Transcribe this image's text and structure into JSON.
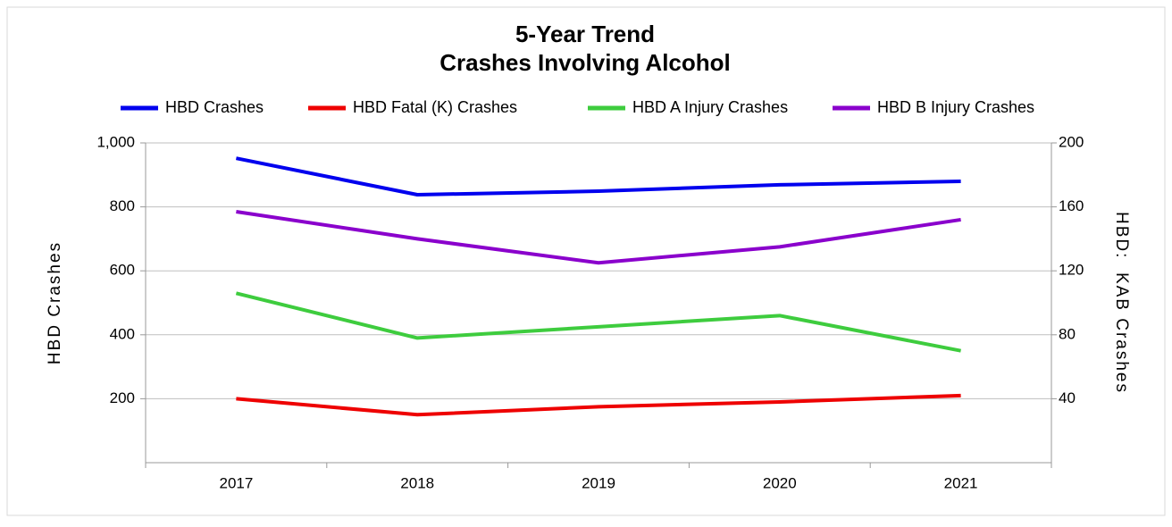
{
  "chart_data": {
    "type": "line",
    "title": "5-Year Trend",
    "subtitle": "Crashes Involving Alcohol",
    "y_label": "HBD Crashes",
    "y2_label": "HBD:  KAB Crashes",
    "categories": [
      "2017",
      "2018",
      "2019",
      "2020",
      "2021"
    ],
    "series": [
      {
        "name": "HBD Crashes",
        "color": "#0000ee",
        "values": [
          952,
          838,
          849,
          869,
          880
        ]
      },
      {
        "name": "HBD Fatal (K) Crashes",
        "color": "#ee0000",
        "axis": "y2",
        "values": [
          40,
          30,
          35,
          38,
          42
        ]
      },
      {
        "name": "HBD A Injury Crashes",
        "color": "#3ecc3e",
        "axis": "y2",
        "values": [
          106,
          78,
          85,
          92,
          70
        ]
      },
      {
        "name": "HBD B Injury Crashes",
        "color": "#8a00cc",
        "axis": "y2",
        "values": [
          157,
          140,
          125,
          135,
          152
        ]
      }
    ],
    "ylim": [
      0,
      1000
    ],
    "yticks": [
      200,
      400,
      600,
      {
        "value": 800,
        "label": "800"
      },
      {
        "value": 1000,
        "label": "1,000"
      }
    ],
    "y2lim": [
      0,
      200
    ],
    "y2ticks": [
      40,
      80,
      120,
      160,
      200
    ],
    "grid": true,
    "legend": "top"
  }
}
